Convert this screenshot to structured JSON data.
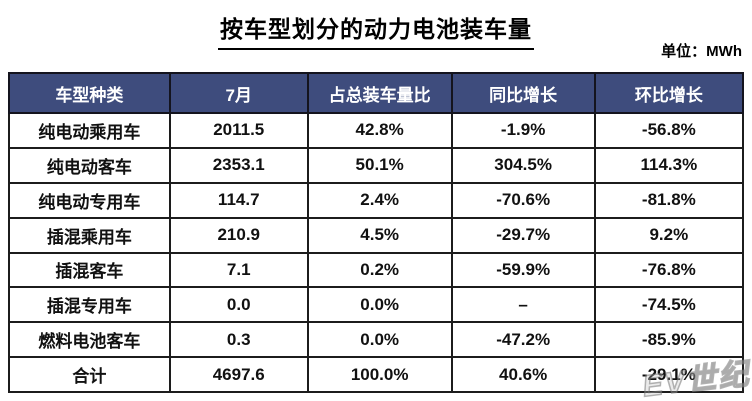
{
  "title": "按车型划分的动力电池装车量",
  "unit_label": "单位：MWh",
  "watermark": "EV世纪",
  "colors": {
    "header_bg": "#3E4C7D",
    "header_text": "#FFFFFF",
    "border": "#1C1C1C",
    "title_text": "#000000"
  },
  "chart_data": {
    "type": "table",
    "title": "按车型划分的动力电池装车量",
    "unit": "MWh",
    "columns": [
      "车型种类",
      "7月",
      "占总装车量比",
      "同比增长",
      "环比增长"
    ],
    "rows": [
      [
        "纯电动乘用车",
        "2011.5",
        "42.8%",
        "-1.9%",
        "-56.8%"
      ],
      [
        "纯电动客车",
        "2353.1",
        "50.1%",
        "304.5%",
        "114.3%"
      ],
      [
        "纯电动专用车",
        "114.7",
        "2.4%",
        "-70.6%",
        "-81.8%"
      ],
      [
        "插混乘用车",
        "210.9",
        "4.5%",
        "-29.7%",
        "9.2%"
      ],
      [
        "插混客车",
        "7.1",
        "0.2%",
        "-59.9%",
        "-76.8%"
      ],
      [
        "插混专用车",
        "0.0",
        "0.0%",
        "–",
        "-74.5%"
      ],
      [
        "燃料电池客车",
        "0.3",
        "0.0%",
        "-47.2%",
        "-85.9%"
      ],
      [
        "合计",
        "4697.6",
        "100.0%",
        "40.6%",
        "-29.1%"
      ]
    ]
  }
}
